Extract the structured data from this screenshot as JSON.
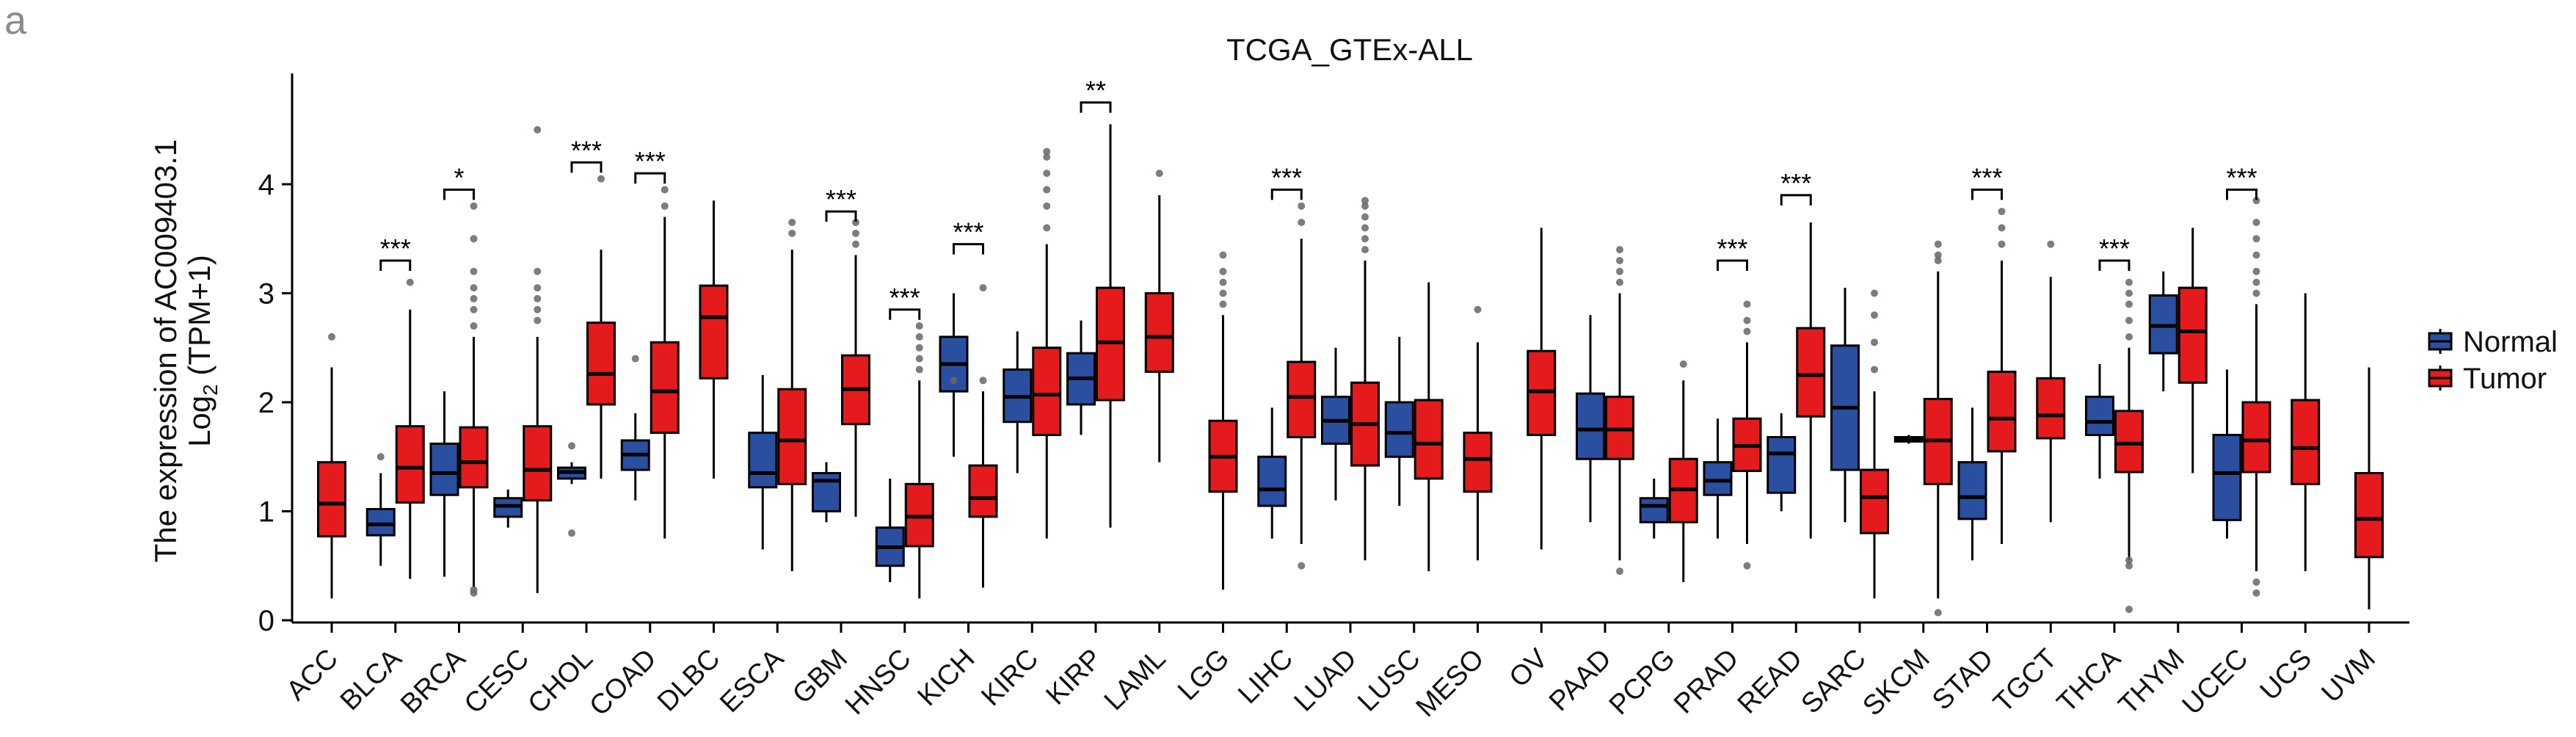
{
  "panel_label": "a",
  "chart_data": {
    "type": "boxplot",
    "title": "TCGA_GTEx-ALL",
    "ylabel_line1": "The expression of AC009403.1",
    "ylabel_line2_main": "Log",
    "ylabel_line2_sub": "2",
    "ylabel_line2_rest": " (TPM+1)",
    "xlabel": "",
    "ylim": [
      0,
      5
    ],
    "yticks": [
      "0",
      "1",
      "2",
      "3",
      "4"
    ],
    "legend": {
      "position": "right",
      "entries": [
        {
          "name": "Normal",
          "color": "#2a4fa0"
        },
        {
          "name": "Tumor",
          "color": "#e41a1c"
        }
      ]
    },
    "categories": [
      "ACC",
      "BLCA",
      "BRCA",
      "CESC",
      "CHOL",
      "COAD",
      "DLBC",
      "ESCA",
      "GBM",
      "HNSC",
      "KICH",
      "KIRC",
      "KIRP",
      "LAML",
      "LGG",
      "LIHC",
      "LUAD",
      "LUSC",
      "MESO",
      "OV",
      "PAAD",
      "PCPG",
      "PRAD",
      "READ",
      "SARC",
      "SKCM",
      "STAD",
      "TGCT",
      "THCA",
      "THYM",
      "UCEC",
      "UCS",
      "UVM"
    ],
    "groups": [
      {
        "cat": "ACC",
        "normal": null,
        "tumor": {
          "wl": 0.2,
          "q1": 0.77,
          "med": 1.07,
          "q3": 1.45,
          "wh": 2.32,
          "out": [
            2.6
          ]
        }
      },
      {
        "cat": "BLCA",
        "sig": "***",
        "sig_y": 3.3,
        "normal": {
          "wl": 0.5,
          "q1": 0.78,
          "med": 0.88,
          "q3": 1.02,
          "wh": 1.35,
          "out": [
            1.5
          ]
        },
        "tumor": {
          "wl": 0.38,
          "q1": 1.08,
          "med": 1.4,
          "q3": 1.78,
          "wh": 2.85,
          "out": [
            3.1
          ]
        }
      },
      {
        "cat": "BRCA",
        "sig": "*",
        "sig_y": 3.95,
        "normal": {
          "wl": 0.4,
          "q1": 1.15,
          "med": 1.35,
          "q3": 1.62,
          "wh": 2.1,
          "out": []
        },
        "tumor": {
          "wl": 0.3,
          "q1": 1.22,
          "med": 1.45,
          "q3": 1.77,
          "wh": 2.6,
          "out": [
            2.7,
            2.85,
            2.95,
            3.05,
            3.2,
            3.5,
            3.8,
            0.25,
            0.28
          ]
        }
      },
      {
        "cat": "CESC",
        "normal": {
          "wl": 0.85,
          "q1": 0.95,
          "med": 1.05,
          "q3": 1.12,
          "wh": 1.2,
          "out": []
        },
        "tumor": {
          "wl": 0.25,
          "q1": 1.1,
          "med": 1.38,
          "q3": 1.78,
          "wh": 2.6,
          "out": [
            2.75,
            2.85,
            2.95,
            3.05,
            3.2,
            4.5
          ]
        }
      },
      {
        "cat": "CHOL",
        "sig": "***",
        "sig_y": 4.2,
        "normal": {
          "wl": 1.25,
          "q1": 1.3,
          "med": 1.36,
          "q3": 1.4,
          "wh": 1.45,
          "out": [
            0.8,
            1.6
          ]
        },
        "tumor": {
          "wl": 1.3,
          "q1": 1.98,
          "med": 2.26,
          "q3": 2.73,
          "wh": 3.4,
          "out": [
            4.05
          ]
        }
      },
      {
        "cat": "COAD",
        "sig": "***",
        "sig_y": 4.1,
        "normal": {
          "wl": 1.1,
          "q1": 1.38,
          "med": 1.52,
          "q3": 1.65,
          "wh": 1.9,
          "out": [
            2.4
          ]
        },
        "tumor": {
          "wl": 0.75,
          "q1": 1.72,
          "med": 2.1,
          "q3": 2.55,
          "wh": 3.7,
          "out": [
            3.8,
            3.95
          ]
        }
      },
      {
        "cat": "DLBC",
        "normal": null,
        "tumor": {
          "wl": 1.3,
          "q1": 2.22,
          "med": 2.78,
          "q3": 3.07,
          "wh": 3.85,
          "out": []
        }
      },
      {
        "cat": "ESCA",
        "normal": {
          "wl": 0.65,
          "q1": 1.22,
          "med": 1.35,
          "q3": 1.72,
          "wh": 2.25,
          "out": []
        },
        "tumor": {
          "wl": 0.45,
          "q1": 1.25,
          "med": 1.65,
          "q3": 2.12,
          "wh": 3.4,
          "out": [
            3.55,
            3.65
          ]
        }
      },
      {
        "cat": "GBM",
        "sig": "***",
        "sig_y": 3.75,
        "normal": {
          "wl": 0.9,
          "q1": 1.0,
          "med": 1.28,
          "q3": 1.35,
          "wh": 1.45,
          "out": []
        },
        "tumor": {
          "wl": 0.95,
          "q1": 1.8,
          "med": 2.12,
          "q3": 2.43,
          "wh": 3.35,
          "out": [
            3.45,
            3.55,
            3.65
          ]
        }
      },
      {
        "cat": "HNSC",
        "sig": "***",
        "sig_y": 2.85,
        "normal": {
          "wl": 0.35,
          "q1": 0.5,
          "med": 0.67,
          "q3": 0.85,
          "wh": 1.3,
          "out": []
        },
        "tumor": {
          "wl": 0.2,
          "q1": 0.68,
          "med": 0.95,
          "q3": 1.25,
          "wh": 2.2,
          "out": [
            2.3,
            2.4,
            2.5,
            2.6,
            2.7
          ]
        }
      },
      {
        "cat": "KICH",
        "sig": "***",
        "sig_y": 3.45,
        "normal": {
          "wl": 1.5,
          "q1": 2.1,
          "med": 2.35,
          "q3": 2.6,
          "wh": 3.0,
          "out": [
            2.2
          ]
        },
        "tumor": {
          "wl": 0.3,
          "q1": 0.95,
          "med": 1.12,
          "q3": 1.42,
          "wh": 2.1,
          "out": [
            2.2,
            3.05
          ]
        }
      },
      {
        "cat": "KIRC",
        "normal": {
          "wl": 1.35,
          "q1": 1.82,
          "med": 2.05,
          "q3": 2.3,
          "wh": 2.65,
          "out": []
        },
        "tumor": {
          "wl": 0.75,
          "q1": 1.7,
          "med": 2.07,
          "q3": 2.5,
          "wh": 3.45,
          "out": [
            3.6,
            3.8,
            3.95,
            4.1,
            4.25,
            4.3
          ]
        }
      },
      {
        "cat": "KIRP",
        "sig": "**",
        "sig_y": 4.75,
        "normal": {
          "wl": 1.7,
          "q1": 1.98,
          "med": 2.22,
          "q3": 2.45,
          "wh": 2.75,
          "out": []
        },
        "tumor": {
          "wl": 0.85,
          "q1": 2.02,
          "med": 2.55,
          "q3": 3.05,
          "wh": 4.55,
          "out": []
        }
      },
      {
        "cat": "LAML",
        "normal": null,
        "tumor": {
          "wl": 1.45,
          "q1": 2.28,
          "med": 2.6,
          "q3": 3.0,
          "wh": 3.9,
          "out": [
            4.1
          ]
        }
      },
      {
        "cat": "LGG",
        "normal": null,
        "tumor": {
          "wl": 0.28,
          "q1": 1.18,
          "med": 1.5,
          "q3": 1.83,
          "wh": 2.8,
          "out": [
            2.9,
            3.0,
            3.1,
            3.2,
            3.35
          ]
        }
      },
      {
        "cat": "LIHC",
        "sig": "***",
        "sig_y": 3.95,
        "normal": {
          "wl": 0.75,
          "q1": 1.05,
          "med": 1.2,
          "q3": 1.5,
          "wh": 1.95,
          "out": []
        },
        "tumor": {
          "wl": 0.7,
          "q1": 1.68,
          "med": 2.05,
          "q3": 2.37,
          "wh": 3.5,
          "out": [
            3.65,
            3.8,
            0.5
          ]
        }
      },
      {
        "cat": "LUAD",
        "normal": {
          "wl": 1.1,
          "q1": 1.62,
          "med": 1.83,
          "q3": 2.05,
          "wh": 2.5,
          "out": []
        },
        "tumor": {
          "wl": 0.55,
          "q1": 1.42,
          "med": 1.8,
          "q3": 2.18,
          "wh": 3.3,
          "out": [
            3.4,
            3.5,
            3.6,
            3.7,
            3.8,
            3.85
          ]
        }
      },
      {
        "cat": "LUSC",
        "normal": {
          "wl": 1.05,
          "q1": 1.5,
          "med": 1.72,
          "q3": 2.0,
          "wh": 2.6,
          "out": []
        },
        "tumor": {
          "wl": 0.45,
          "q1": 1.3,
          "med": 1.62,
          "q3": 2.02,
          "wh": 3.1,
          "out": []
        }
      },
      {
        "cat": "MESO",
        "normal": null,
        "tumor": {
          "wl": 0.55,
          "q1": 1.18,
          "med": 1.48,
          "q3": 1.72,
          "wh": 2.55,
          "out": [
            2.85
          ]
        }
      },
      {
        "cat": "OV",
        "normal": null,
        "tumor": {
          "wl": 0.65,
          "q1": 1.7,
          "med": 2.1,
          "q3": 2.47,
          "wh": 3.6,
          "out": []
        }
      },
      {
        "cat": "PAAD",
        "normal": {
          "wl": 0.9,
          "q1": 1.48,
          "med": 1.75,
          "q3": 2.08,
          "wh": 2.8,
          "out": []
        },
        "tumor": {
          "wl": 0.55,
          "q1": 1.48,
          "med": 1.75,
          "q3": 2.05,
          "wh": 3.0,
          "out": [
            3.1,
            3.2,
            3.3,
            3.4,
            0.45
          ]
        }
      },
      {
        "cat": "PCPG",
        "normal": {
          "wl": 0.75,
          "q1": 0.9,
          "med": 1.05,
          "q3": 1.12,
          "wh": 1.3,
          "out": []
        },
        "tumor": {
          "wl": 0.35,
          "q1": 0.9,
          "med": 1.2,
          "q3": 1.48,
          "wh": 2.2,
          "out": [
            2.35
          ]
        }
      },
      {
        "cat": "PRAD",
        "sig": "***",
        "sig_y": 3.3,
        "normal": {
          "wl": 0.75,
          "q1": 1.15,
          "med": 1.28,
          "q3": 1.45,
          "wh": 1.85,
          "out": []
        },
        "tumor": {
          "wl": 0.7,
          "q1": 1.37,
          "med": 1.6,
          "q3": 1.85,
          "wh": 2.55,
          "out": [
            2.65,
            2.75,
            2.9,
            0.5
          ]
        }
      },
      {
        "cat": "READ",
        "sig": "***",
        "sig_y": 3.9,
        "normal": {
          "wl": 1.0,
          "q1": 1.17,
          "med": 1.53,
          "q3": 1.68,
          "wh": 1.9,
          "out": []
        },
        "tumor": {
          "wl": 0.75,
          "q1": 1.87,
          "med": 2.25,
          "q3": 2.68,
          "wh": 3.65,
          "out": []
        }
      },
      {
        "cat": "SARC",
        "normal": {
          "wl": 0.9,
          "q1": 1.38,
          "med": 1.95,
          "q3": 2.52,
          "wh": 3.05,
          "out": []
        },
        "tumor": {
          "wl": 0.2,
          "q1": 0.8,
          "med": 1.13,
          "q3": 1.38,
          "wh": 2.1,
          "out": [
            2.3,
            2.55,
            2.8,
            3.0
          ]
        }
      },
      {
        "cat": "SKCM",
        "normal": {
          "wl": 1.62,
          "q1": 1.64,
          "med": 1.66,
          "q3": 1.68,
          "wh": 1.7,
          "out": []
        },
        "tumor": {
          "wl": 0.2,
          "q1": 1.25,
          "med": 1.65,
          "q3": 2.03,
          "wh": 3.2,
          "out": [
            3.3,
            3.35,
            3.45,
            0.07
          ]
        }
      },
      {
        "cat": "STAD",
        "sig": "***",
        "sig_y": 3.95,
        "normal": {
          "wl": 0.55,
          "q1": 0.93,
          "med": 1.13,
          "q3": 1.45,
          "wh": 1.95,
          "out": []
        },
        "tumor": {
          "wl": 0.7,
          "q1": 1.55,
          "med": 1.85,
          "q3": 2.28,
          "wh": 3.3,
          "out": [
            3.45,
            3.6,
            3.75
          ]
        }
      },
      {
        "cat": "TGCT",
        "normal": null,
        "tumor": {
          "wl": 0.9,
          "q1": 1.67,
          "med": 1.88,
          "q3": 2.22,
          "wh": 3.15,
          "out": [
            3.45
          ]
        }
      },
      {
        "cat": "THCA",
        "sig": "***",
        "sig_y": 3.3,
        "normal": {
          "wl": 1.3,
          "q1": 1.7,
          "med": 1.82,
          "q3": 2.05,
          "wh": 2.35,
          "out": []
        },
        "tumor": {
          "wl": 0.55,
          "q1": 1.36,
          "med": 1.62,
          "q3": 1.92,
          "wh": 2.5,
          "out": [
            2.6,
            2.75,
            2.9,
            3.0,
            3.1,
            0.55,
            0.5,
            0.1
          ]
        }
      },
      {
        "cat": "THYM",
        "normal": {
          "wl": 2.1,
          "q1": 2.45,
          "med": 2.7,
          "q3": 2.98,
          "wh": 3.2,
          "out": []
        },
        "tumor": {
          "wl": 1.35,
          "q1": 2.18,
          "med": 2.65,
          "q3": 3.05,
          "wh": 3.6,
          "out": []
        }
      },
      {
        "cat": "UCEC",
        "sig": "***",
        "sig_y": 3.95,
        "normal": {
          "wl": 0.75,
          "q1": 0.92,
          "med": 1.35,
          "q3": 1.7,
          "wh": 2.3,
          "out": []
        },
        "tumor": {
          "wl": 0.45,
          "q1": 1.36,
          "med": 1.65,
          "q3": 2.0,
          "wh": 2.9,
          "out": [
            3.0,
            3.1,
            3.2,
            3.35,
            3.5,
            3.65,
            3.85,
            0.35,
            0.25
          ]
        }
      },
      {
        "cat": "UCS",
        "normal": null,
        "tumor": {
          "wl": 0.45,
          "q1": 1.25,
          "med": 1.58,
          "q3": 2.02,
          "wh": 3.0,
          "out": []
        }
      },
      {
        "cat": "UVM",
        "normal": null,
        "tumor": {
          "wl": 0.1,
          "q1": 0.58,
          "med": 0.93,
          "q3": 1.35,
          "wh": 2.32,
          "out": []
        }
      }
    ]
  }
}
